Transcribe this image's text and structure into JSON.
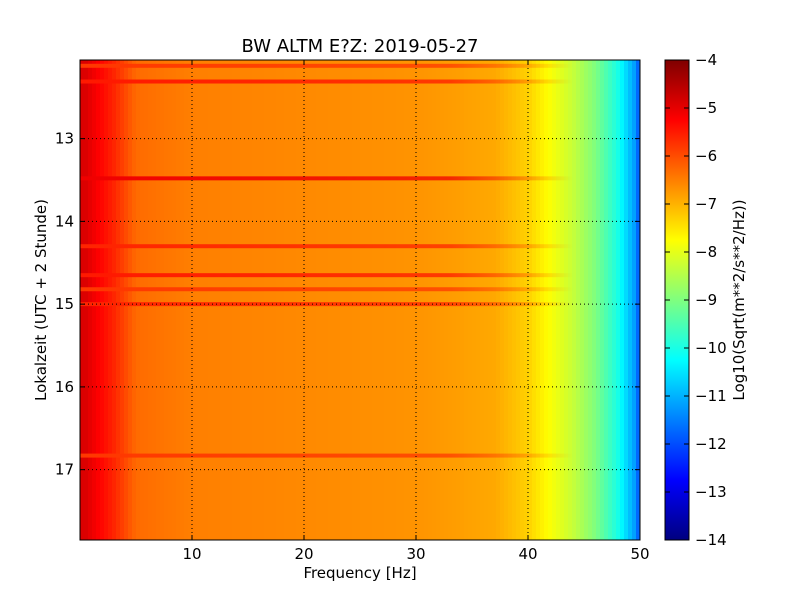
{
  "chart_data": {
    "type": "heatmap",
    "title": "BW ALTM E?Z: 2019-05-27",
    "xlabel": "Frequency [Hz]",
    "ylabel": "Lokalzeit (UTC + 2 Stunde)",
    "x_range": [
      0,
      50
    ],
    "y_range": [
      12.05,
      17.85
    ],
    "y_inverted": true,
    "x_ticks": [
      10,
      20,
      30,
      40,
      50
    ],
    "y_ticks": [
      13,
      14,
      15,
      16,
      17
    ],
    "grid": true,
    "colorbar": {
      "label": "Log10(Sqrt(m**2/s**2/Hz))",
      "range": [
        -14,
        -4
      ],
      "ticks": [
        -4,
        -5,
        -6,
        -7,
        -8,
        -9,
        -10,
        -11,
        -12,
        -13,
        -14
      ],
      "colormap": [
        "#00007f",
        "#0000ff",
        "#007fff",
        "#00ffff",
        "#7fff7f",
        "#ffff00",
        "#ff7f00",
        "#ff0000",
        "#7f0000"
      ]
    },
    "spectral_profile_hz": [
      0.5,
      1.5,
      3,
      5,
      10,
      20,
      30,
      37,
      40,
      42,
      44,
      46,
      48,
      49.5,
      50
    ],
    "spectral_profile_log10": [
      -4.9,
      -5.2,
      -5.6,
      -6.3,
      -6.5,
      -6.6,
      -6.7,
      -6.9,
      -7.3,
      -7.8,
      -8.3,
      -9.0,
      -10.0,
      -11.2,
      -12.0
    ],
    "horizontal_bands": [
      {
        "time": 12.12,
        "log10": -5.8
      },
      {
        "time": 12.31,
        "log10": -5.5
      },
      {
        "time": 13.48,
        "log10": -5.1
      },
      {
        "time": 14.3,
        "log10": -5.6
      },
      {
        "time": 14.65,
        "log10": -5.5
      },
      {
        "time": 14.82,
        "log10": -5.8
      },
      {
        "time": 15.0,
        "log10": -5.6
      },
      {
        "time": 16.83,
        "log10": -5.8
      }
    ]
  }
}
